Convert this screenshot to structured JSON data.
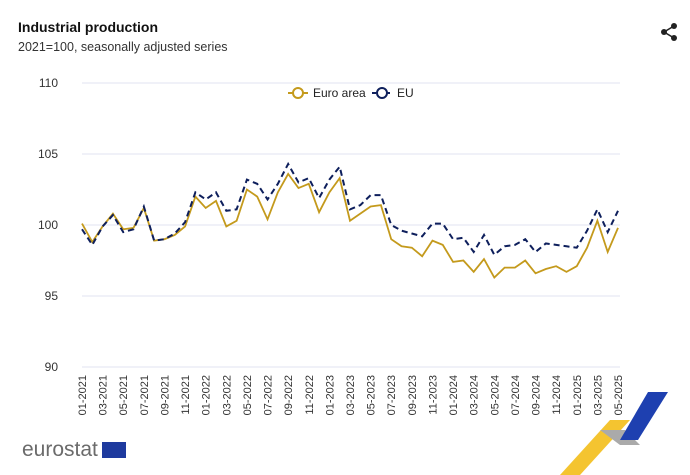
{
  "header": {
    "title": "Industrial production",
    "subtitle": "2021=100, seasonally adjusted series"
  },
  "logo": {
    "text": "eurostat"
  },
  "colors": {
    "euro_area": "#c49a1c",
    "eu": "#0e1f5c",
    "grid": "#e0e3f0"
  },
  "chart_data": {
    "type": "line",
    "title": "Industrial production",
    "subtitle": "2021=100, seasonally adjusted series",
    "xlabel": "",
    "ylabel": "",
    "ylim": [
      90,
      110
    ],
    "yticks": [
      90,
      95,
      100,
      105,
      110
    ],
    "grid": true,
    "legend": "top-center",
    "x": [
      "01-2021",
      "02-2021",
      "03-2021",
      "04-2021",
      "05-2021",
      "06-2021",
      "07-2021",
      "08-2021",
      "09-2021",
      "10-2021",
      "11-2021",
      "12-2021",
      "01-2022",
      "02-2022",
      "03-2022",
      "04-2022",
      "05-2022",
      "06-2022",
      "07-2022",
      "08-2022",
      "09-2022",
      "10-2022",
      "11-2022",
      "12-2022",
      "01-2023",
      "02-2023",
      "03-2023",
      "04-2023",
      "05-2023",
      "06-2023",
      "07-2023",
      "08-2023",
      "09-2023",
      "10-2023",
      "11-2023",
      "12-2023",
      "01-2024",
      "02-2024",
      "03-2024",
      "04-2024",
      "05-2024",
      "06-2024",
      "07-2024",
      "08-2024",
      "09-2024",
      "10-2024",
      "11-2024",
      "12-2024",
      "01-2025",
      "02-2025",
      "03-2025",
      "04-2025",
      "05-2025"
    ],
    "series": [
      {
        "name": "Euro area",
        "style": "solid",
        "values": [
          100.1,
          98.8,
          99.9,
          100.8,
          99.7,
          99.8,
          101.2,
          98.9,
          99.0,
          99.3,
          99.9,
          102.0,
          101.2,
          101.7,
          99.9,
          100.3,
          102.5,
          102.0,
          100.4,
          102.3,
          103.6,
          102.6,
          102.9,
          100.9,
          102.3,
          103.3,
          100.3,
          100.8,
          101.3,
          101.4,
          99.0,
          98.5,
          98.4,
          97.8,
          98.9,
          98.6,
          97.4,
          97.5,
          96.7,
          97.6,
          96.3,
          97.0,
          97.0,
          97.5,
          96.6,
          96.9,
          97.1,
          96.7,
          97.1,
          98.4,
          100.3,
          98.1,
          99.8
        ]
      },
      {
        "name": "EU",
        "style": "dashed",
        "values": [
          99.7,
          98.6,
          99.9,
          100.7,
          99.5,
          99.7,
          101.3,
          98.9,
          99.0,
          99.4,
          100.2,
          102.3,
          101.8,
          102.3,
          101.0,
          101.1,
          103.2,
          102.9,
          101.8,
          102.9,
          104.3,
          103.0,
          103.3,
          101.9,
          103.2,
          104.1,
          101.1,
          101.4,
          102.1,
          102.1,
          100.0,
          99.6,
          99.4,
          99.2,
          100.1,
          100.1,
          99.0,
          99.1,
          98.1,
          99.3,
          97.9,
          98.5,
          98.6,
          99.0,
          98.1,
          98.7,
          98.6,
          98.5,
          98.4,
          99.6,
          101.1,
          99.5,
          101.0
        ]
      }
    ]
  }
}
